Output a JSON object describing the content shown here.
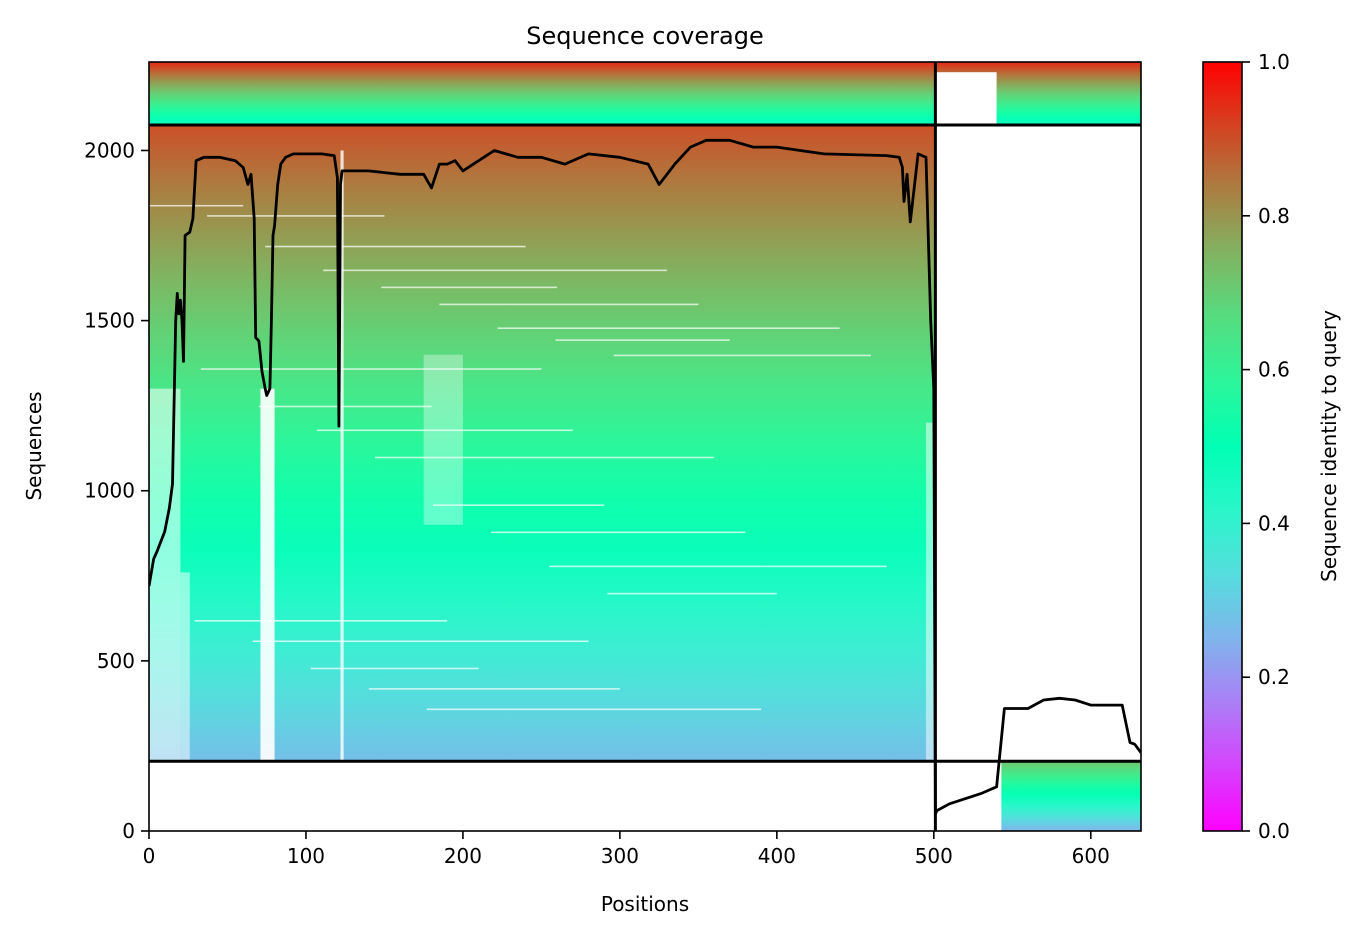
{
  "chart_data": {
    "type": "heatmap",
    "title": "Sequence coverage",
    "xlabel": "Positions",
    "ylabel": "Sequences",
    "colorbar_label": "Sequence identity to query",
    "colormap": "rainbow",
    "xlim": [
      0,
      632
    ],
    "ylim": [
      0,
      2260
    ],
    "xticks": [
      0,
      100,
      200,
      300,
      400,
      500,
      600
    ],
    "yticks": [
      0,
      500,
      1000,
      1500,
      2000
    ],
    "colorbar_ticks": [
      0.0,
      0.2,
      0.4,
      0.6,
      0.8,
      1.0
    ],
    "colorbar_tick_labels": [
      "0.0",
      "0.2",
      "0.4",
      "0.6",
      "0.8",
      "1.0"
    ],
    "colorbar_range": [
      0,
      1
    ],
    "chain_boundaries": {
      "x": [
        501
      ],
      "y": [
        205,
        2075
      ]
    },
    "blocks": [
      {
        "name": "chain-A-rows",
        "x": [
          0,
          501
        ],
        "y": [
          205,
          2075
        ],
        "identity_bottom": 0.27,
        "identity_top": 0.9
      },
      {
        "name": "paired-top-left",
        "x": [
          0,
          501
        ],
        "y": [
          2075,
          2260
        ],
        "identity_bottom": 0.45,
        "identity_top": 0.95
      },
      {
        "name": "paired-top-right",
        "x": [
          501,
          632
        ],
        "y": [
          2075,
          2260
        ],
        "identity_bottom": 0.45,
        "identity_top": 0.95
      },
      {
        "name": "chain-B-rows",
        "x": [
          543,
          632
        ],
        "y": [
          0,
          205
        ],
        "identity_bottom": 0.25,
        "identity_top": 0.72
      }
    ],
    "coverage_line": {
      "x": [
        0,
        3,
        5,
        10,
        13,
        15,
        17,
        18,
        19,
        20,
        21,
        22,
        23,
        26,
        28,
        30,
        35,
        45,
        55,
        60,
        63,
        65,
        67,
        68,
        70,
        72,
        74,
        75,
        77,
        78,
        79,
        80,
        82,
        84,
        87,
        92,
        100,
        110,
        118,
        120,
        121,
        122,
        123,
        125,
        140,
        160,
        175,
        180,
        185,
        190,
        195,
        200,
        210,
        220,
        235,
        250,
        265,
        280,
        300,
        318,
        325,
        330,
        335,
        345,
        355,
        370,
        385,
        400,
        430,
        470,
        478,
        480,
        481,
        483,
        485,
        490,
        495,
        498,
        500,
        501,
        502,
        510,
        520,
        530,
        540,
        545,
        560,
        570,
        580,
        590,
        600,
        610,
        620,
        625,
        628,
        632
      ],
      "y": [
        720,
        800,
        820,
        880,
        950,
        1020,
        1500,
        1580,
        1520,
        1560,
        1500,
        1380,
        1750,
        1760,
        1800,
        1970,
        1980,
        1980,
        1970,
        1950,
        1900,
        1930,
        1800,
        1450,
        1440,
        1350,
        1300,
        1280,
        1300,
        1500,
        1750,
        1780,
        1900,
        1960,
        1980,
        1990,
        1990,
        1990,
        1985,
        1920,
        1190,
        1900,
        1940,
        1940,
        1940,
        1930,
        1930,
        1890,
        1960,
        1960,
        1970,
        1940,
        1970,
        2000,
        1980,
        1980,
        1960,
        1990,
        1980,
        1960,
        1900,
        1930,
        1960,
        2010,
        2030,
        2030,
        2010,
        2010,
        1990,
        1985,
        1980,
        1950,
        1850,
        1930,
        1790,
        1990,
        1980,
        1500,
        1300,
        50,
        60,
        80,
        95,
        110,
        130,
        360,
        360,
        385,
        390,
        385,
        370,
        370,
        370,
        260,
        255,
        230
      ]
    }
  }
}
